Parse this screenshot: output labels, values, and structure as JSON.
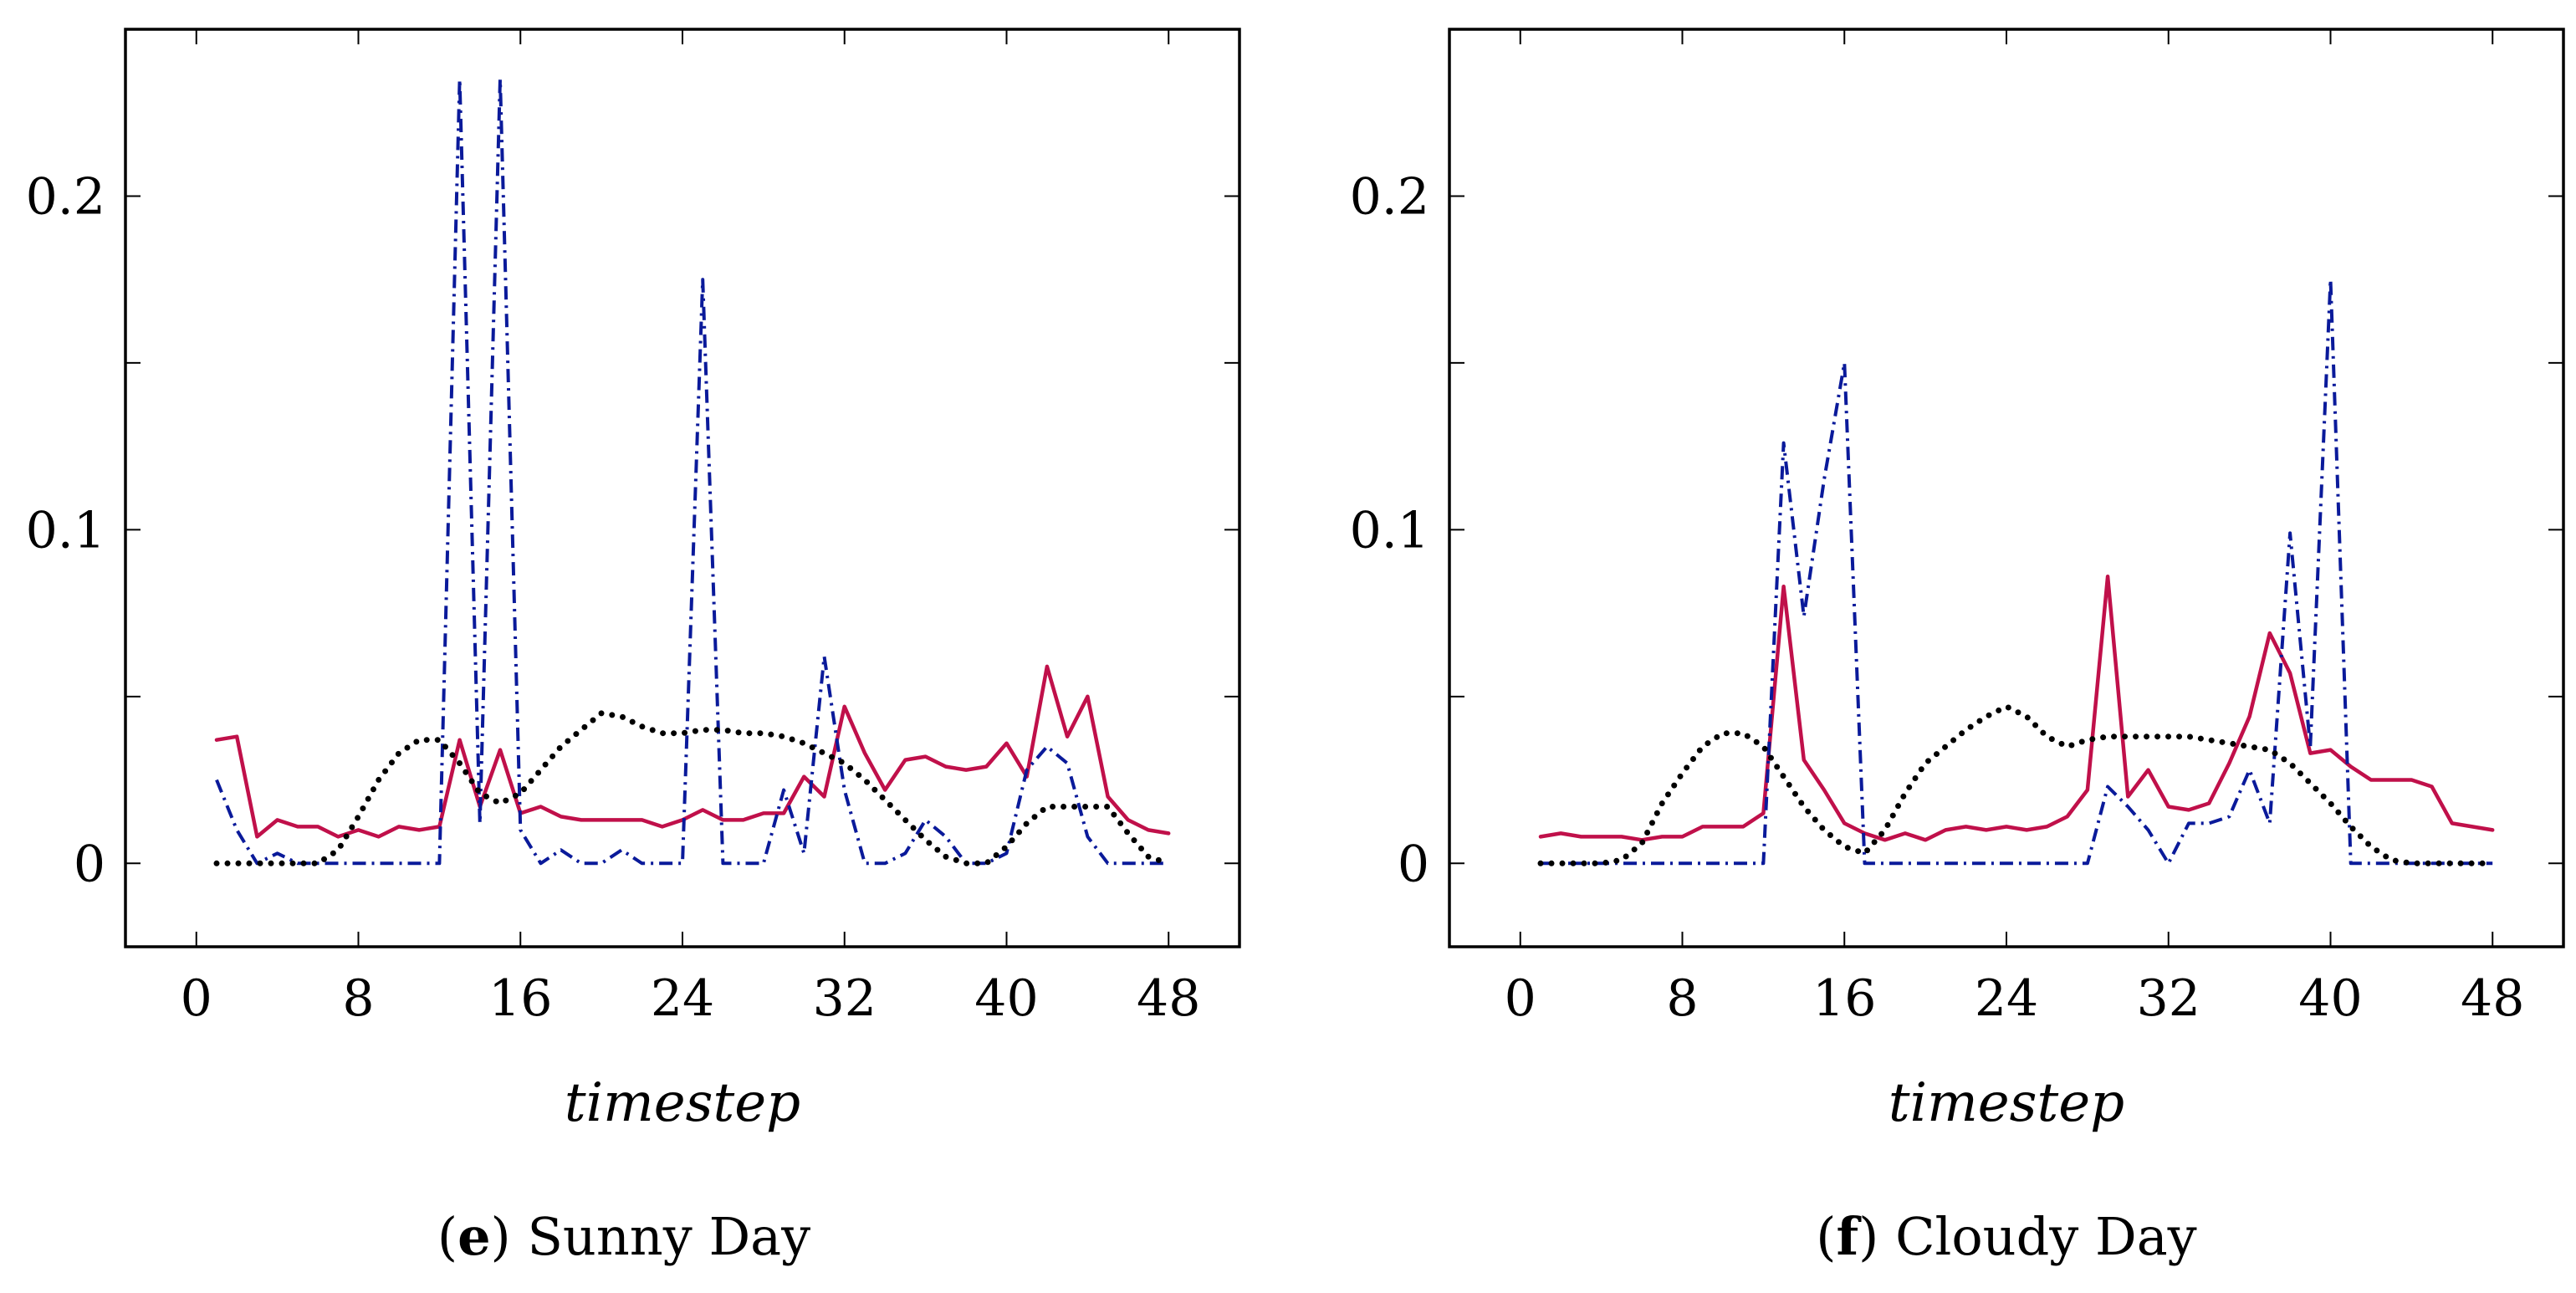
{
  "chart_data": [
    {
      "type": "line",
      "caption_letter": "e",
      "caption_text": "Sunny Day",
      "caption_open": "(",
      "caption_close": ")",
      "xlabel": "timestep",
      "ylabel": "",
      "xlim": [
        -3.5,
        51.5
      ],
      "ylim": [
        -0.025,
        0.25
      ],
      "xticks": [
        0,
        8,
        16,
        24,
        32,
        40,
        48
      ],
      "xtick_labels": [
        "0",
        "8",
        "16",
        "24",
        "32",
        "40",
        "48"
      ],
      "yticks": [
        0,
        0.1,
        0.2
      ],
      "ytick_labels": [
        "0",
        "0.1",
        "0.2"
      ],
      "yminor_ticks": [
        0.05,
        0.15
      ],
      "grid": false,
      "series": [
        {
          "name": "solid",
          "color": "#c0104a",
          "style": "solid",
          "x": [
            1,
            2,
            3,
            4,
            5,
            6,
            7,
            8,
            9,
            10,
            11,
            12,
            13,
            14,
            15,
            16,
            17,
            18,
            19,
            20,
            21,
            22,
            23,
            24,
            25,
            26,
            27,
            28,
            29,
            30,
            31,
            32,
            33,
            34,
            35,
            36,
            37,
            38,
            39,
            40,
            41,
            42,
            43,
            44,
            45,
            46,
            47,
            48
          ],
          "values": [
            0.037,
            0.038,
            0.008,
            0.013,
            0.011,
            0.011,
            0.008,
            0.01,
            0.008,
            0.011,
            0.01,
            0.011,
            0.037,
            0.017,
            0.034,
            0.015,
            0.017,
            0.014,
            0.013,
            0.013,
            0.013,
            0.013,
            0.011,
            0.013,
            0.016,
            0.013,
            0.013,
            0.015,
            0.015,
            0.026,
            0.02,
            0.047,
            0.033,
            0.022,
            0.031,
            0.032,
            0.029,
            0.028,
            0.029,
            0.036,
            0.026,
            0.059,
            0.038,
            0.05,
            0.02,
            0.013,
            0.01,
            0.009
          ]
        },
        {
          "name": "dash-dot",
          "color": "#0a1a9a",
          "style": "dashdot",
          "x": [
            1,
            2,
            3,
            4,
            5,
            6,
            7,
            8,
            9,
            10,
            11,
            12,
            13,
            14,
            15,
            16,
            17,
            18,
            19,
            20,
            21,
            22,
            23,
            24,
            25,
            26,
            27,
            28,
            29,
            30,
            31,
            32,
            33,
            34,
            35,
            36,
            37,
            38,
            39,
            40,
            41,
            42,
            43,
            44,
            45,
            46,
            47,
            48
          ],
          "values": [
            0.025,
            0.01,
            0.0,
            0.003,
            0.0,
            0.0,
            0.0,
            0.0,
            0.0,
            0.0,
            0.0,
            0.0,
            0.235,
            0.012,
            0.235,
            0.01,
            0.0,
            0.004,
            0.0,
            0.0,
            0.004,
            0.0,
            0.0,
            0.0,
            0.175,
            0.0,
            0.0,
            0.0,
            0.022,
            0.003,
            0.062,
            0.022,
            0.0,
            0.0,
            0.003,
            0.013,
            0.008,
            0.0,
            0.0,
            0.003,
            0.028,
            0.035,
            0.03,
            0.008,
            0.0,
            0.0,
            0.0,
            0.0
          ]
        },
        {
          "name": "dotted",
          "color": "#000000",
          "style": "dotted",
          "x": [
            1,
            2,
            3,
            4,
            5,
            6,
            7,
            8,
            9,
            10,
            11,
            12,
            13,
            14,
            15,
            16,
            17,
            18,
            19,
            20,
            21,
            22,
            23,
            24,
            25,
            26,
            27,
            28,
            29,
            30,
            31,
            32,
            33,
            34,
            35,
            36,
            37,
            38,
            39,
            40,
            41,
            42,
            43,
            44,
            45,
            46,
            47,
            48
          ],
          "values": [
            0.0,
            0.0,
            0.0,
            0.0,
            0.0,
            0.0,
            0.004,
            0.014,
            0.025,
            0.033,
            0.037,
            0.037,
            0.03,
            0.021,
            0.018,
            0.021,
            0.028,
            0.035,
            0.04,
            0.045,
            0.044,
            0.041,
            0.039,
            0.039,
            0.04,
            0.04,
            0.039,
            0.039,
            0.038,
            0.036,
            0.033,
            0.03,
            0.025,
            0.019,
            0.013,
            0.007,
            0.002,
            0.0,
            0.0,
            0.005,
            0.012,
            0.017,
            0.017,
            0.017,
            0.017,
            0.009,
            0.002,
            0.0
          ]
        }
      ]
    },
    {
      "type": "line",
      "caption_letter": "f",
      "caption_text": "Cloudy Day",
      "caption_open": "(",
      "caption_close": ")",
      "xlabel": "timestep",
      "ylabel": "",
      "xlim": [
        -3.5,
        51.5
      ],
      "ylim": [
        -0.025,
        0.25
      ],
      "xticks": [
        0,
        8,
        16,
        24,
        32,
        40,
        48
      ],
      "xtick_labels": [
        "0",
        "8",
        "16",
        "24",
        "32",
        "40",
        "48"
      ],
      "yticks": [
        0,
        0.1,
        0.2
      ],
      "ytick_labels": [
        "0",
        "0.1",
        "0.2"
      ],
      "yminor_ticks": [
        0.05,
        0.15
      ],
      "grid": false,
      "series": [
        {
          "name": "solid",
          "color": "#c0104a",
          "style": "solid",
          "x": [
            1,
            2,
            3,
            4,
            5,
            6,
            7,
            8,
            9,
            10,
            11,
            12,
            13,
            14,
            15,
            16,
            17,
            18,
            19,
            20,
            21,
            22,
            23,
            24,
            25,
            26,
            27,
            28,
            29,
            30,
            31,
            32,
            33,
            34,
            35,
            36,
            37,
            38,
            39,
            40,
            41,
            42,
            43,
            44,
            45,
            46,
            47,
            48
          ],
          "values": [
            0.008,
            0.009,
            0.008,
            0.008,
            0.008,
            0.007,
            0.008,
            0.008,
            0.011,
            0.011,
            0.011,
            0.015,
            0.083,
            0.031,
            0.022,
            0.012,
            0.009,
            0.007,
            0.009,
            0.007,
            0.01,
            0.011,
            0.01,
            0.011,
            0.01,
            0.011,
            0.014,
            0.022,
            0.086,
            0.02,
            0.028,
            0.017,
            0.016,
            0.018,
            0.03,
            0.044,
            0.069,
            0.057,
            0.033,
            0.034,
            0.029,
            0.025,
            0.025,
            0.025,
            0.023,
            0.012,
            0.011,
            0.01
          ]
        },
        {
          "name": "dash-dot",
          "color": "#0a1a9a",
          "style": "dashdot",
          "x": [
            1,
            2,
            3,
            4,
            5,
            6,
            7,
            8,
            9,
            10,
            11,
            12,
            13,
            14,
            15,
            16,
            17,
            18,
            19,
            20,
            21,
            22,
            23,
            24,
            25,
            26,
            27,
            28,
            29,
            30,
            31,
            32,
            33,
            34,
            35,
            36,
            37,
            38,
            39,
            40,
            41,
            42,
            43,
            44,
            45,
            46,
            47,
            48
          ],
          "values": [
            0.0,
            0.0,
            0.0,
            0.0,
            0.0,
            0.0,
            0.0,
            0.0,
            0.0,
            0.0,
            0.0,
            0.0,
            0.126,
            0.074,
            0.115,
            0.15,
            0.0,
            0.0,
            0.0,
            0.0,
            0.0,
            0.0,
            0.0,
            0.0,
            0.0,
            0.0,
            0.0,
            0.0,
            0.023,
            0.017,
            0.01,
            0.0,
            0.012,
            0.012,
            0.014,
            0.028,
            0.012,
            0.099,
            0.035,
            0.175,
            0.0,
            0.0,
            0.0,
            0.0,
            0.0,
            0.0,
            0.0,
            0.0
          ]
        },
        {
          "name": "dotted",
          "color": "#000000",
          "style": "dotted",
          "x": [
            1,
            2,
            3,
            4,
            5,
            6,
            7,
            8,
            9,
            10,
            11,
            12,
            13,
            14,
            15,
            16,
            17,
            18,
            19,
            20,
            21,
            22,
            23,
            24,
            25,
            26,
            27,
            28,
            29,
            30,
            31,
            32,
            33,
            34,
            35,
            36,
            37,
            38,
            39,
            40,
            41,
            42,
            43,
            44,
            45,
            46,
            47,
            48
          ],
          "values": [
            0.0,
            0.0,
            0.0,
            0.0,
            0.001,
            0.006,
            0.018,
            0.027,
            0.035,
            0.039,
            0.039,
            0.035,
            0.026,
            0.017,
            0.01,
            0.005,
            0.003,
            0.01,
            0.021,
            0.03,
            0.035,
            0.04,
            0.044,
            0.047,
            0.044,
            0.038,
            0.035,
            0.037,
            0.038,
            0.038,
            0.038,
            0.038,
            0.038,
            0.037,
            0.036,
            0.035,
            0.034,
            0.03,
            0.024,
            0.018,
            0.011,
            0.005,
            0.001,
            0.0,
            0.0,
            0.0,
            0.0,
            0.0
          ]
        }
      ]
    }
  ]
}
